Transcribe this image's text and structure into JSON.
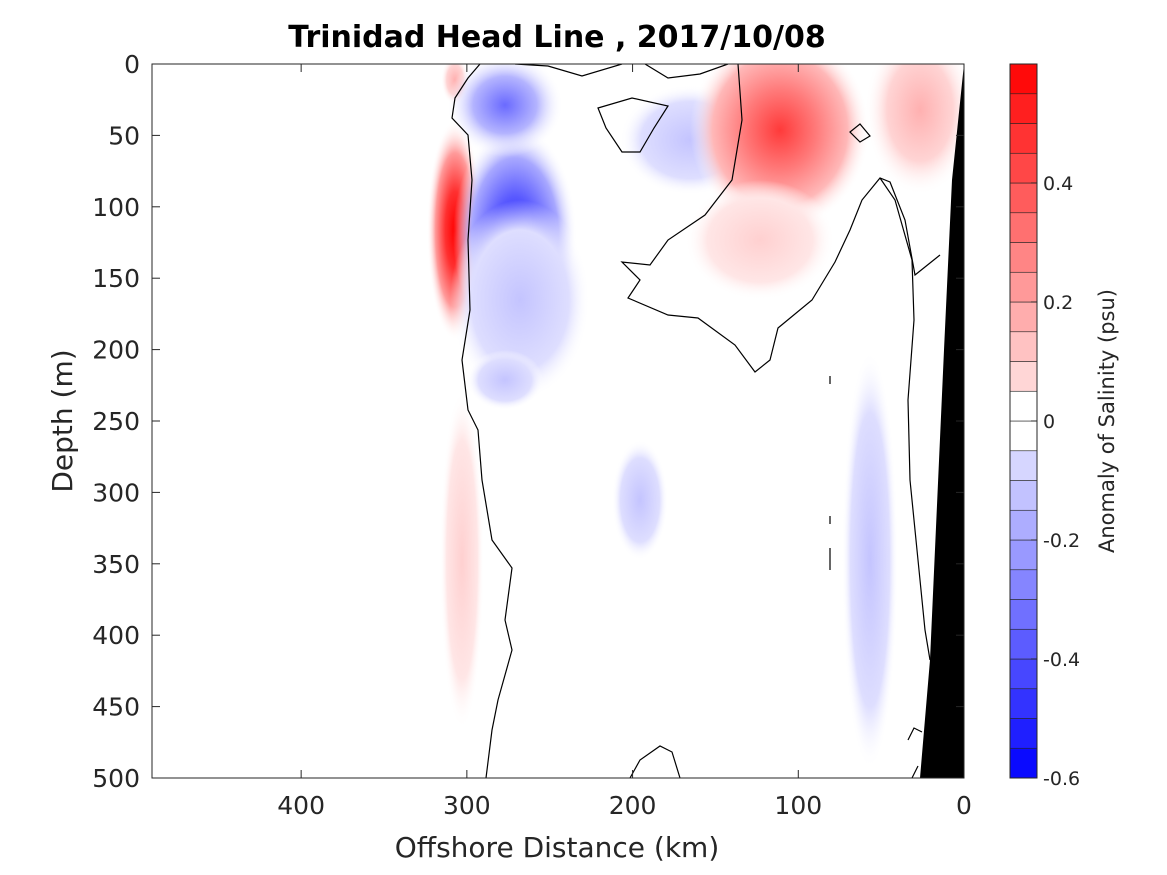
{
  "chart_data": {
    "type": "heatmap",
    "title": "Trinidad Head Line , 2017/10/08",
    "xlabel": "Offshore Distance (km)",
    "ylabel": "Depth (m)",
    "xlim": [
      490,
      0
    ],
    "ylim": [
      0,
      500
    ],
    "x_ticks": [
      400,
      300,
      200,
      100,
      0
    ],
    "y_ticks": [
      0,
      50,
      100,
      150,
      200,
      250,
      300,
      350,
      400,
      450,
      500
    ],
    "colorbar": {
      "label": "Anomaly of Salinity (psu)",
      "range": [
        -0.6,
        0.6
      ],
      "step": 0.05,
      "ticks": [
        -0.6,
        -0.4,
        -0.2,
        0,
        0.2,
        0.4
      ],
      "tick_labels": [
        "-0.6",
        "-0.4",
        "-0.2",
        "0",
        "0.2",
        "0.4"
      ],
      "colormap": "blue-white-red"
    },
    "contour_levels": [
      0
    ],
    "data_extent_km": [
      0,
      310
    ],
    "features": [
      {
        "type": "anomaly",
        "sign": "positive",
        "x": 305,
        "y": 115,
        "value": 0.55
      },
      {
        "type": "anomaly",
        "sign": "negative",
        "x": 270,
        "y": 125,
        "value": -0.45
      },
      {
        "type": "anomaly",
        "sign": "negative",
        "x": 275,
        "y": 25,
        "value": -0.4
      },
      {
        "type": "anomaly",
        "sign": "positive",
        "x": 110,
        "y": 30,
        "value": 0.4
      },
      {
        "type": "anomaly",
        "sign": "positive",
        "x": 25,
        "y": 50,
        "value": 0.3
      },
      {
        "type": "anomaly",
        "sign": "positive",
        "x": 90,
        "y": 160,
        "value": 0.1
      },
      {
        "type": "anomaly",
        "sign": "negative",
        "x": 170,
        "y": 60,
        "value": -0.1
      },
      {
        "type": "anomaly",
        "sign": "negative",
        "x": 60,
        "y": 400,
        "value": -0.15
      },
      {
        "type": "anomaly",
        "sign": "negative",
        "x": 200,
        "y": 300,
        "value": -0.06
      },
      {
        "type": "anomaly",
        "sign": "positive",
        "x": 300,
        "y": 410,
        "value": 0.1
      }
    ]
  },
  "colors": {
    "positive_max": "#ff0000",
    "negative_max": "#0000ff",
    "bathymetry": "#000000",
    "contour": "#000000"
  }
}
